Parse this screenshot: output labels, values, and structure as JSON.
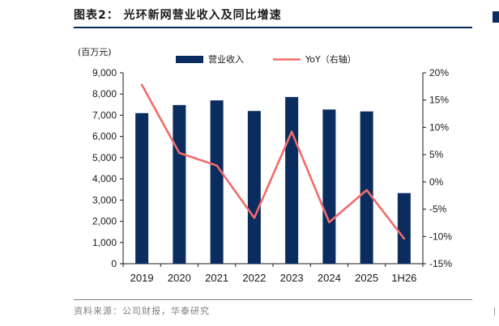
{
  "header": {
    "title": "图表2：  光环新网营业收入及同比增速"
  },
  "footer": {
    "source": "资料来源：公司财报，华泰研究"
  },
  "chart_data": {
    "type": "bar",
    "categories": [
      "2019",
      "2020",
      "2021",
      "2022",
      "2023",
      "2024",
      "2025",
      "1H26"
    ],
    "series": [
      {
        "name": "营业收入",
        "type": "bar",
        "axis": "left",
        "color": "#0b2c5f",
        "values": [
          7100,
          7480,
          7700,
          7200,
          7860,
          7270,
          7180,
          3330
        ]
      },
      {
        "name": "YoY（右轴）",
        "type": "line",
        "axis": "right",
        "color": "#f26b6b",
        "values": [
          17.8,
          5.3,
          3.0,
          -6.6,
          9.2,
          -7.4,
          -1.5,
          -10.4
        ]
      }
    ],
    "ylabel": "(百万元)",
    "ylim": [
      0,
      9000
    ],
    "yticks": [
      "0",
      "1,000",
      "2,000",
      "3,000",
      "4,000",
      "5,000",
      "6,000",
      "7,000",
      "8,000",
      "9,000"
    ],
    "y2lim": [
      -15,
      20
    ],
    "y2ticks": [
      "-15%",
      "-10%",
      "-5%",
      "0%",
      "5%",
      "10%",
      "15%",
      "20%"
    ],
    "legend": "top-center",
    "grid": false
  }
}
